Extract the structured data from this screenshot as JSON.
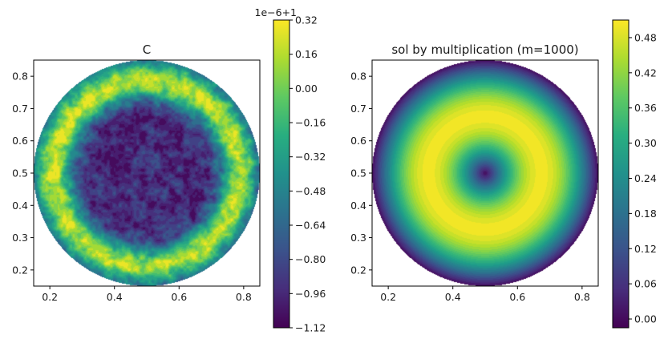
{
  "chart_data": [
    {
      "type": "heatmap",
      "subtype": "filled-contour",
      "title": "C",
      "xlabel": "",
      "ylabel": "",
      "xlim": [
        0.15,
        0.85
      ],
      "ylim": [
        0.15,
        0.85
      ],
      "xticks": [
        "0.2",
        "0.4",
        "0.6",
        "0.8"
      ],
      "xtick_values": [
        0.2,
        0.4,
        0.6,
        0.8
      ],
      "yticks": [
        "0.2",
        "0.3",
        "0.4",
        "0.5",
        "0.6",
        "0.7",
        "0.8"
      ],
      "ytick_values": [
        0.2,
        0.3,
        0.4,
        0.5,
        0.6,
        0.7,
        0.8
      ],
      "domain": {
        "shape": "disk",
        "center": [
          0.5,
          0.5
        ],
        "radius": 0.35
      },
      "field_description": "noisy field; low (~-1.0e-6) near center, high (~+0.2e-6) in an annulus near r≈0.28, dipping toward boundary",
      "colorbar": {
        "colormap": "viridis",
        "offset_label": "1e−6+1",
        "vmin": -1.12,
        "vmax": 0.32,
        "ticks": [
          "0.32",
          "0.16",
          "0.00",
          "−0.16",
          "−0.32",
          "−0.48",
          "−0.64",
          "−0.80",
          "−0.96",
          "−1.12"
        ],
        "tick_values": [
          0.32,
          0.16,
          0.0,
          -0.16,
          -0.32,
          -0.48,
          -0.64,
          -0.8,
          -0.96,
          -1.12
        ],
        "levels": 18
      }
    },
    {
      "type": "heatmap",
      "subtype": "filled-contour",
      "title": "sol by multiplication (m=1000)",
      "xlabel": "",
      "ylabel": "",
      "xlim": [
        0.15,
        0.85
      ],
      "ylim": [
        0.15,
        0.85
      ],
      "xticks": [
        "0.2",
        "0.4",
        "0.6",
        "0.8"
      ],
      "xtick_values": [
        0.2,
        0.4,
        0.6,
        0.8
      ],
      "yticks": [
        "0.2",
        "0.3",
        "0.4",
        "0.5",
        "0.6",
        "0.7",
        "0.8"
      ],
      "ytick_values": [
        0.2,
        0.3,
        0.4,
        0.5,
        0.6,
        0.7,
        0.8
      ],
      "domain": {
        "shape": "disk",
        "center": [
          0.5,
          0.5
        ],
        "radius": 0.35
      },
      "field_description": "radially symmetric; 0 at center, peak ~0.50 at r≈0.175, ~0 at boundary",
      "colorbar": {
        "colormap": "viridis",
        "vmin": -0.015,
        "vmax": 0.51,
        "ticks": [
          "0.48",
          "0.42",
          "0.36",
          "0.30",
          "0.24",
          "0.18",
          "0.12",
          "0.06",
          "0.00"
        ],
        "tick_values": [
          0.48,
          0.42,
          0.36,
          0.3,
          0.24,
          0.18,
          0.12,
          0.06,
          0.0
        ],
        "levels": 30
      }
    }
  ]
}
